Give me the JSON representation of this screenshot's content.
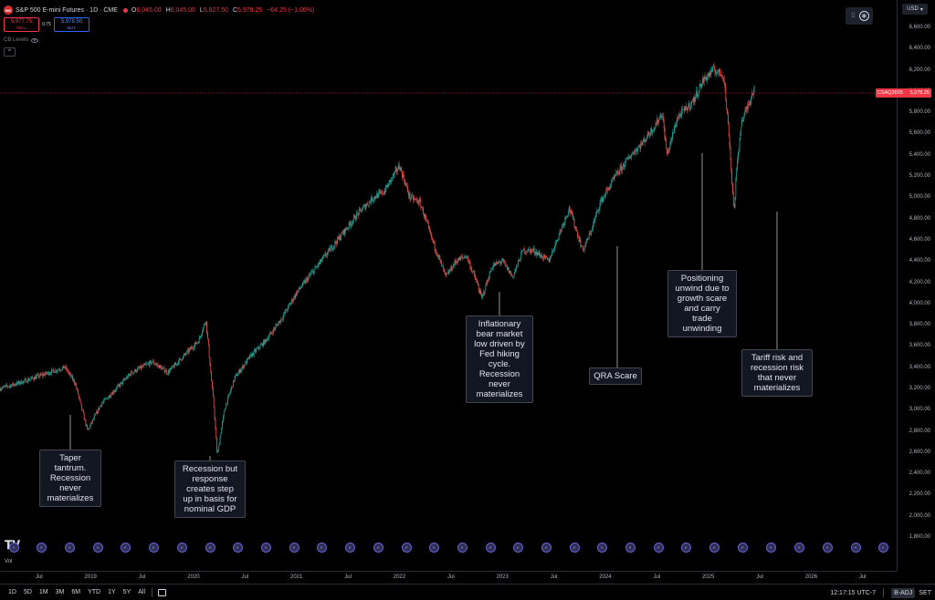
{
  "header": {
    "symbol_logo": "500",
    "title": "S&P 500 E-mini Futures · 1D · CME",
    "ohlc": [
      {
        "k": "O",
        "v": "6,045.00"
      },
      {
        "k": "H",
        "v": "6,045.00"
      },
      {
        "k": "L",
        "v": "5,927.50"
      },
      {
        "k": "C",
        "v": "5,978.25"
      }
    ],
    "change": "−64.25 (−1.06%)"
  },
  "trade": {
    "sell_price": "5,977.75",
    "sell_label": "SELL",
    "spread": "0.75",
    "buy_price": "5,978.50",
    "buy_label": "BUY"
  },
  "indicator": {
    "label": "CB Levels"
  },
  "collapse": {
    "glyph": "^"
  },
  "currency": {
    "label": "USD"
  },
  "price_tag": {
    "label": "CSAQ2025",
    "value": "5,978.25"
  },
  "colors": {
    "up": "#26a69a",
    "down": "#ef5350",
    "last_price": "#f23645",
    "accent": "#2962ff"
  },
  "chart_data": {
    "type": "line",
    "y_ticks": [
      "6,600.00",
      "6,400.00",
      "6,200.00",
      "6,000.00",
      "5,800.00",
      "5,600.00",
      "5,400.00",
      "5,200.00",
      "5,000.00",
      "4,800.00",
      "4,600.00",
      "4,400.00",
      "4,200.00",
      "4,000.00",
      "3,800.00",
      "3,600.00",
      "3,400.00",
      "3,200.00",
      "3,000.00",
      "2,800.00",
      "2,600.00",
      "2,400.00",
      "2,200.00",
      "2,000.00",
      "1,800.00"
    ],
    "ylim": [
      1800,
      6600
    ],
    "x_ticks": [
      "Jul",
      "2019",
      "Jul",
      "2020",
      "Jul",
      "2021",
      "Jul",
      "2022",
      "Jul",
      "2023",
      "Jul",
      "2024",
      "Jul",
      "2025",
      "Jul",
      "2026",
      "Jul"
    ],
    "x_tick_t": [
      2018.5,
      2019,
      2019.5,
      2020,
      2020.5,
      2021,
      2021.5,
      2022,
      2022.5,
      2023,
      2023.5,
      2024,
      2024.5,
      2025,
      2025.5,
      2026,
      2026.5
    ],
    "xlim": [
      2018.12,
      2026.83
    ],
    "series": [
      {
        "x": [
          2018.12,
          2018.3,
          2018.45,
          2018.6,
          2018.75,
          2018.85,
          2018.97,
          2019.1,
          2019.25,
          2019.4,
          2019.5,
          2019.6,
          2019.75,
          2019.9,
          2020.05,
          2020.12,
          2020.2,
          2020.23,
          2020.3,
          2020.4,
          2020.55,
          2020.7,
          2020.85,
          2021.0,
          2021.2,
          2021.4,
          2021.6,
          2021.75,
          2021.85,
          2022.0,
          2022.1,
          2022.2,
          2022.3,
          2022.45,
          2022.55,
          2022.65,
          2022.75,
          2022.8,
          2022.9,
          2023.0,
          2023.1,
          2023.2,
          2023.3,
          2023.45,
          2023.55,
          2023.65,
          2023.78,
          2023.85,
          2023.95,
          2024.1,
          2024.25,
          2024.35,
          2024.5,
          2024.55,
          2024.6,
          2024.7,
          2024.85,
          2024.95,
          2025.05,
          2025.15,
          2025.2,
          2025.25,
          2025.27,
          2025.32,
          2025.4,
          2025.45
        ],
        "y": [
          3200,
          3250,
          3300,
          3350,
          3400,
          3250,
          2800,
          3050,
          3200,
          3350,
          3400,
          3450,
          3350,
          3500,
          3650,
          3850,
          3000,
          2570,
          3000,
          3300,
          3500,
          3650,
          3850,
          4100,
          4350,
          4600,
          4850,
          5000,
          5050,
          5300,
          5000,
          4950,
          4650,
          4250,
          4400,
          4450,
          4200,
          4050,
          4350,
          4400,
          4250,
          4500,
          4500,
          4400,
          4650,
          4900,
          4500,
          4650,
          4950,
          5200,
          5400,
          5500,
          5700,
          5800,
          5400,
          5750,
          5900,
          6100,
          6200,
          6150,
          5600,
          4850,
          5200,
          5700,
          5900,
          6050
        ]
      }
    ]
  },
  "annotations": [
    {
      "text": "Taper tantrum. Recession never materializes",
      "lines": "Taper\ntantrum.\nRecession\nnever\nmaterializes"
    },
    {
      "text": "Recession but response creates step up in basis for nominal GDP",
      "lines": "Recession but\nresponse\ncreates step\nup in basis for\nnominal GDP"
    },
    {
      "text": "Inflationary bear market low driven by Fed hiking cycle. Recession never materializes",
      "lines": "Inflationary\nbear market\nlow driven by\nFed hiking\ncycle.\nRecession\nnever\nmaterializes"
    },
    {
      "text": "QRA Scare",
      "lines": "QRA Scare"
    },
    {
      "text": "Positioning unwind due to growth scare and carry trade unwinding",
      "lines": "Positioning\nunwind due to\ngrowth scare\nand carry\ntrade\nunwinding"
    },
    {
      "text": "Tariff risk and recession risk that never materializes",
      "lines": "Tariff risk and\nrecession risk\nthat never\nmaterializes"
    }
  ],
  "volume": {
    "label": "Vol"
  },
  "ranges": [
    "1D",
    "5D",
    "1M",
    "3M",
    "6M",
    "YTD",
    "1Y",
    "5Y",
    "All"
  ],
  "status": {
    "clock": "12:17:15 UTC-7",
    "badj": "B-ADJ",
    "set": "SET"
  },
  "icons": {
    "logo": "tradingview-logo",
    "events": "earnings-event-icon",
    "calendar": "calendar-icon"
  }
}
